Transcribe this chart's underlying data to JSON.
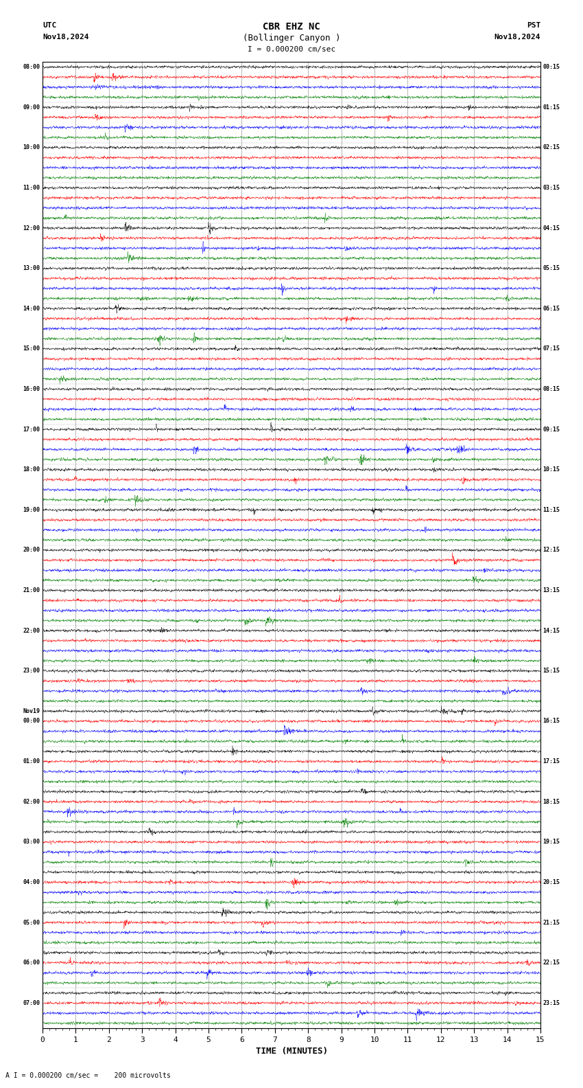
{
  "title_line1": "CBR EHZ NC",
  "title_line2": "(Bollinger Canyon )",
  "scale_text": "I = 0.000200 cm/sec",
  "footer_text": "A I = 0.000200 cm/sec =    200 microvolts",
  "utc_label": "UTC",
  "utc_date": "Nov18,2024",
  "pst_label": "PST",
  "pst_date": "Nov18,2024",
  "xlabel": "TIME (MINUTES)",
  "left_times_utc": [
    "08:00",
    "",
    "",
    "",
    "09:00",
    "",
    "",
    "",
    "10:00",
    "",
    "",
    "",
    "11:00",
    "",
    "",
    "",
    "12:00",
    "",
    "",
    "",
    "13:00",
    "",
    "",
    "",
    "14:00",
    "",
    "",
    "",
    "15:00",
    "",
    "",
    "",
    "16:00",
    "",
    "",
    "",
    "17:00",
    "",
    "",
    "",
    "18:00",
    "",
    "",
    "",
    "19:00",
    "",
    "",
    "",
    "20:00",
    "",
    "",
    "",
    "21:00",
    "",
    "",
    "",
    "22:00",
    "",
    "",
    "",
    "23:00",
    "",
    "",
    "",
    "Nov19",
    "00:00",
    "",
    "",
    "",
    "01:00",
    "",
    "",
    "",
    "02:00",
    "",
    "",
    "",
    "03:00",
    "",
    "",
    "",
    "04:00",
    "",
    "",
    "",
    "05:00",
    "",
    "",
    "",
    "06:00",
    "",
    "",
    "",
    "07:00",
    "",
    ""
  ],
  "right_times_pst": [
    "00:15",
    "",
    "",
    "",
    "01:15",
    "",
    "",
    "",
    "02:15",
    "",
    "",
    "",
    "03:15",
    "",
    "",
    "",
    "04:15",
    "",
    "",
    "",
    "05:15",
    "",
    "",
    "",
    "06:15",
    "",
    "",
    "",
    "07:15",
    "",
    "",
    "",
    "08:15",
    "",
    "",
    "",
    "09:15",
    "",
    "",
    "",
    "10:15",
    "",
    "",
    "",
    "11:15",
    "",
    "",
    "",
    "12:15",
    "",
    "",
    "",
    "13:15",
    "",
    "",
    "",
    "14:15",
    "",
    "",
    "",
    "15:15",
    "",
    "",
    "",
    "",
    "16:15",
    "",
    "",
    "",
    "17:15",
    "",
    "",
    "",
    "18:15",
    "",
    "",
    "",
    "19:15",
    "",
    "",
    "",
    "20:15",
    "",
    "",
    "",
    "21:15",
    "",
    "",
    "",
    "22:15",
    "",
    "",
    "",
    "23:15",
    "",
    ""
  ],
  "n_rows": 96,
  "n_cols": 3600,
  "x_min": 0,
  "x_max": 15,
  "colors": [
    "black",
    "red",
    "blue",
    "green"
  ],
  "bg_color": "white",
  "noise_amplitude": 0.1,
  "seed": 42
}
